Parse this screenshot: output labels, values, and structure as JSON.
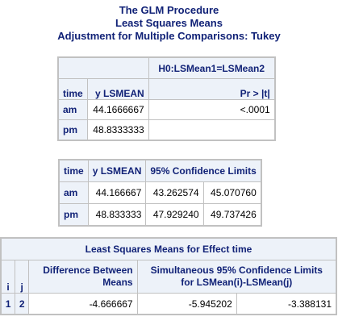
{
  "titles": {
    "line1": "The GLM Procedure",
    "line2": "Least Squares Means",
    "line3": "Adjustment for Multiple Comparisons: Tukey"
  },
  "table1": {
    "h_test": "H0:LSMean1=LSMean2",
    "h_time": "time",
    "h_lsmean": "y LSMEAN",
    "h_p": "Pr > |t|",
    "rows": [
      {
        "time": "am",
        "lsmean": "44.1666667",
        "p": "<.0001"
      },
      {
        "time": "pm",
        "lsmean": "48.8333333",
        "p": ""
      }
    ]
  },
  "table2": {
    "h_time": "time",
    "h_lsmean": "y LSMEAN",
    "h_cl": "95% Confidence Limits",
    "rows": [
      {
        "time": "am",
        "lsmean": "44.166667",
        "lower": "43.262574",
        "upper": "45.070760"
      },
      {
        "time": "pm",
        "lsmean": "48.833333",
        "lower": "47.929240",
        "upper": "49.737426"
      }
    ]
  },
  "table3": {
    "title": "Least Squares Means for Effect time",
    "h_i": "i",
    "h_j": "j",
    "h_diff1": "Difference Between",
    "h_diff2": "Means",
    "h_scl1": "Simultaneous 95% Confidence Limits",
    "h_scl2": "for LSMean(i)-LSMean(j)",
    "rows": [
      {
        "i": "1",
        "j": "2",
        "diff": "-4.666667",
        "lower": "-5.945202",
        "upper": "-3.388131"
      }
    ]
  },
  "colors": {
    "header_bg": "#edf2f9",
    "header_text": "#112277",
    "border": "#c1c1c1"
  }
}
